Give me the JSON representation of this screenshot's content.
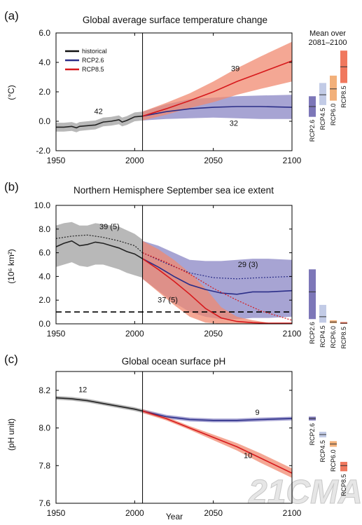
{
  "figure": {
    "mean_header": [
      "Mean over",
      "2081–2100"
    ],
    "x_title": "Year",
    "watermark": "21CMA"
  },
  "chart_data": [
    {
      "panel_label": "(a)",
      "title": "Global average surface temperature change",
      "type": "line",
      "ylabel": "(°C)",
      "xlim": [
        1950,
        2100
      ],
      "ylim": [
        -2.0,
        6.0
      ],
      "xticks": [
        "1950",
        "2000",
        "2050",
        "2100"
      ],
      "yticks": [
        "-2.0",
        "0.0",
        "2.0",
        "4.0",
        "6.0"
      ],
      "divider_year": 2005,
      "legend": [
        "historical",
        "RCP2.6",
        "RCP8.5"
      ],
      "series": [
        {
          "name": "historical",
          "color": "#222222",
          "band_color": "#a0a0a0",
          "x": [
            1950,
            1955,
            1960,
            1963,
            1965,
            1970,
            1975,
            1980,
            1985,
            1990,
            1992,
            1995,
            2000,
            2005
          ],
          "y": [
            -0.4,
            -0.4,
            -0.35,
            -0.45,
            -0.35,
            -0.3,
            -0.25,
            -0.05,
            0.0,
            0.1,
            -0.05,
            0.05,
            0.3,
            0.35
          ],
          "lo": [
            -0.7,
            -0.7,
            -0.65,
            -0.75,
            -0.65,
            -0.6,
            -0.55,
            -0.35,
            -0.3,
            -0.2,
            -0.35,
            -0.25,
            0.0,
            0.05
          ],
          "hi": [
            -0.1,
            -0.1,
            -0.05,
            -0.15,
            -0.05,
            0.0,
            0.05,
            0.25,
            0.3,
            0.4,
            0.25,
            0.35,
            0.6,
            0.65
          ]
        },
        {
          "name": "RCP2.6",
          "color": "#2b2e88",
          "band_color": "#8a86c4",
          "x": [
            2005,
            2020,
            2035,
            2050,
            2065,
            2080,
            2100
          ],
          "y": [
            0.35,
            0.65,
            0.85,
            0.95,
            1.0,
            1.0,
            0.95
          ],
          "lo": [
            0.05,
            0.15,
            0.2,
            0.25,
            0.2,
            0.15,
            0.15
          ],
          "hi": [
            0.65,
            1.15,
            1.5,
            1.6,
            1.7,
            1.75,
            1.8
          ]
        },
        {
          "name": "RCP8.5",
          "color": "#d7191c",
          "band_color": "#f08a70",
          "x": [
            2005,
            2020,
            2035,
            2050,
            2065,
            2080,
            2100
          ],
          "y": [
            0.35,
            0.85,
            1.4,
            2.0,
            2.7,
            3.3,
            4.1
          ],
          "lo": [
            0.05,
            0.45,
            0.9,
            1.3,
            1.8,
            2.2,
            2.7
          ],
          "hi": [
            0.65,
            1.25,
            1.9,
            2.7,
            3.6,
            4.4,
            5.4
          ]
        }
      ],
      "annotations": [
        {
          "text": "42",
          "x": 1977,
          "y": 0.5,
          "color": "#111111"
        },
        {
          "text": "39",
          "x": 2064,
          "y": 3.4,
          "color": "#d7191c"
        },
        {
          "text": "32",
          "x": 2063,
          "y": -0.3,
          "color": "#2b2e88"
        }
      ],
      "mean_bars": [
        {
          "label": "RCP2.6",
          "lo": 0.3,
          "hi": 1.7,
          "mean": 1.0,
          "color": "#7d77b8"
        },
        {
          "label": "RCP4.5",
          "lo": 1.1,
          "hi": 2.6,
          "mean": 1.8,
          "color": "#c2cbe6"
        },
        {
          "label": "RCP6.0",
          "lo": 1.4,
          "hi": 3.1,
          "mean": 2.2,
          "color": "#f2b07a"
        },
        {
          "label": "RCP8.5",
          "lo": 2.6,
          "hi": 4.8,
          "mean": 3.7,
          "color": "#f0785e"
        }
      ]
    },
    {
      "panel_label": "(b)",
      "title": "Northern Hemisphere September sea ice extent",
      "type": "line",
      "ylabel": "(10⁶ km²)",
      "xlim": [
        1950,
        2100
      ],
      "ylim": [
        0.0,
        10.0
      ],
      "xticks": [
        "1950",
        "2000",
        "2050",
        "2100"
      ],
      "yticks": [
        "0.0",
        "2.0",
        "4.0",
        "6.0",
        "8.0",
        "10.0"
      ],
      "divider_year": 2005,
      "reference_line": 1.0,
      "series": [
        {
          "name": "historical",
          "color": "#222222",
          "band_color": "#a0a0a0",
          "x": [
            1950,
            1955,
            1960,
            1965,
            1970,
            1975,
            1980,
            1985,
            1990,
            1995,
            2000,
            2005
          ],
          "y": [
            6.5,
            6.8,
            7.0,
            6.6,
            6.7,
            6.9,
            6.8,
            6.6,
            6.4,
            6.1,
            5.9,
            5.5
          ],
          "lo": [
            4.8,
            5.0,
            5.2,
            4.9,
            4.8,
            5.0,
            5.0,
            4.8,
            4.6,
            4.3,
            4.1,
            3.9
          ],
          "hi": [
            8.3,
            8.5,
            8.6,
            8.3,
            8.3,
            8.5,
            8.4,
            8.3,
            8.2,
            7.9,
            7.6,
            7.1
          ]
        },
        {
          "name": "historical subset",
          "color": "#222222",
          "dashed": true,
          "x": [
            1950,
            1960,
            1970,
            1980,
            1990,
            2000,
            2005
          ],
          "y": [
            7.2,
            7.4,
            7.5,
            7.3,
            7.0,
            6.6,
            6.0
          ]
        },
        {
          "name": "RCP2.6",
          "color": "#2b2e88",
          "band_color": "#8a86c4",
          "x": [
            2005,
            2015,
            2025,
            2035,
            2045,
            2055,
            2065,
            2075,
            2085,
            2100
          ],
          "y": [
            5.5,
            4.8,
            4.0,
            3.3,
            2.9,
            2.6,
            2.5,
            2.7,
            2.7,
            2.8
          ],
          "lo": [
            3.8,
            2.8,
            1.8,
            1.0,
            0.6,
            0.4,
            0.4,
            0.5,
            0.5,
            0.6
          ],
          "hi": [
            7.0,
            6.6,
            6.0,
            5.4,
            5.3,
            5.3,
            5.4,
            5.5,
            5.5,
            5.4
          ]
        },
        {
          "name": "RCP2.6 subset",
          "color": "#2b2e88",
          "dashed": true,
          "x": [
            2005,
            2020,
            2035,
            2050,
            2065,
            2080,
            2100
          ],
          "y": [
            6.0,
            5.1,
            4.3,
            3.9,
            3.8,
            3.9,
            4.0
          ]
        },
        {
          "name": "RCP8.5",
          "color": "#d7191c",
          "band_color": "#f08a70",
          "x": [
            2005,
            2015,
            2025,
            2035,
            2045,
            2055,
            2065,
            2075,
            2085,
            2100
          ],
          "y": [
            5.5,
            4.6,
            3.6,
            2.5,
            1.3,
            0.5,
            0.2,
            0.1,
            0.05,
            0.05
          ],
          "lo": [
            3.8,
            2.7,
            1.6,
            0.6,
            0.1,
            0.0,
            0.0,
            0.0,
            0.0,
            0.0
          ],
          "hi": [
            7.0,
            6.3,
            5.4,
            4.3,
            3.0,
            1.4,
            0.6,
            0.3,
            0.1,
            0.1
          ]
        },
        {
          "name": "RCP8.5 subset",
          "color": "#d7191c",
          "dashed": true,
          "x": [
            2005,
            2020,
            2035,
            2050,
            2065,
            2080,
            2100
          ],
          "y": [
            6.0,
            5.2,
            4.2,
            3.0,
            2.0,
            1.1,
            0.3
          ]
        }
      ],
      "annotations": [
        {
          "text": "39 (5)",
          "x": 1984,
          "y": 8.0,
          "color": "#111111"
        },
        {
          "text": "29 (3)",
          "x": 2072,
          "y": 4.8,
          "color": "#2b2e88"
        },
        {
          "text": "37 (5)",
          "x": 2021,
          "y": 1.8,
          "color": "#d7191c"
        }
      ],
      "mean_bars": [
        {
          "label": "RCP2.6",
          "lo": 0.4,
          "hi": 4.6,
          "mean": 2.7,
          "color": "#7d77b8"
        },
        {
          "label": "RCP4.5",
          "lo": 0.1,
          "hi": 1.6,
          "mean": 0.6,
          "color": "#c2cbe6"
        },
        {
          "label": "RCP6.0",
          "lo": 0.05,
          "hi": 0.3,
          "mean": 0.15,
          "color": "#f2b07a"
        },
        {
          "label": "RCP8.5",
          "lo": 0.0,
          "hi": 0.15,
          "mean": 0.05,
          "color": "#f0785e"
        }
      ]
    },
    {
      "panel_label": "(c)",
      "title": "Global ocean surface pH",
      "type": "line",
      "ylabel": "(pH unit)",
      "xlim": [
        1950,
        2100
      ],
      "ylim": [
        7.6,
        8.3
      ],
      "xticks": [
        "1950",
        "2000",
        "2050",
        "2100"
      ],
      "yticks": [
        "7.6",
        "7.8",
        "8.0",
        "8.2"
      ],
      "divider_year": 2005,
      "series": [
        {
          "name": "historical",
          "color": "#222222",
          "band_color": "#a0a0a0",
          "x": [
            1950,
            1960,
            1970,
            1980,
            1990,
            2000,
            2005
          ],
          "y": [
            8.16,
            8.155,
            8.145,
            8.13,
            8.115,
            8.1,
            8.09
          ],
          "lo": [
            8.15,
            8.145,
            8.135,
            8.12,
            8.105,
            8.09,
            8.08
          ],
          "hi": [
            8.17,
            8.165,
            8.155,
            8.14,
            8.125,
            8.11,
            8.1
          ]
        },
        {
          "name": "RCP2.6",
          "color": "#2b2e88",
          "band_color": "#8a86c4",
          "x": [
            2005,
            2020,
            2035,
            2050,
            2065,
            2080,
            2100
          ],
          "y": [
            8.09,
            8.06,
            8.045,
            8.04,
            8.04,
            8.045,
            8.05
          ],
          "lo": [
            8.08,
            8.05,
            8.035,
            8.03,
            8.03,
            8.035,
            8.04
          ],
          "hi": [
            8.1,
            8.07,
            8.055,
            8.05,
            8.05,
            8.055,
            8.06
          ]
        },
        {
          "name": "RCP8.5",
          "color": "#d7191c",
          "band_color": "#f08a70",
          "x": [
            2005,
            2020,
            2035,
            2050,
            2065,
            2080,
            2100
          ],
          "y": [
            8.09,
            8.05,
            8.0,
            7.95,
            7.9,
            7.84,
            7.76
          ],
          "lo": [
            8.08,
            8.04,
            7.99,
            7.935,
            7.88,
            7.815,
            7.735
          ],
          "hi": [
            8.1,
            8.06,
            8.01,
            7.965,
            7.92,
            7.865,
            7.785
          ]
        }
      ],
      "annotations": [
        {
          "text": "12",
          "x": 1967,
          "y": 8.19,
          "color": "#111111"
        },
        {
          "text": "9",
          "x": 2078,
          "y": 8.07,
          "color": "#2b2e88"
        },
        {
          "text": "10",
          "x": 2072,
          "y": 7.84,
          "color": "#d7191c"
        }
      ],
      "mean_bars": [
        {
          "label": "RCP2.6",
          "lo": 8.04,
          "hi": 8.06,
          "mean": 8.05,
          "color": "#7d77b8"
        },
        {
          "label": "RCP4.5",
          "lo": 7.95,
          "hi": 7.98,
          "mean": 7.965,
          "color": "#c2cbe6"
        },
        {
          "label": "RCP6.0",
          "lo": 7.9,
          "hi": 7.93,
          "mean": 7.915,
          "color": "#f2b07a"
        },
        {
          "label": "RCP8.5",
          "lo": 7.77,
          "hi": 7.82,
          "mean": 7.8,
          "color": "#f0785e"
        }
      ]
    }
  ]
}
